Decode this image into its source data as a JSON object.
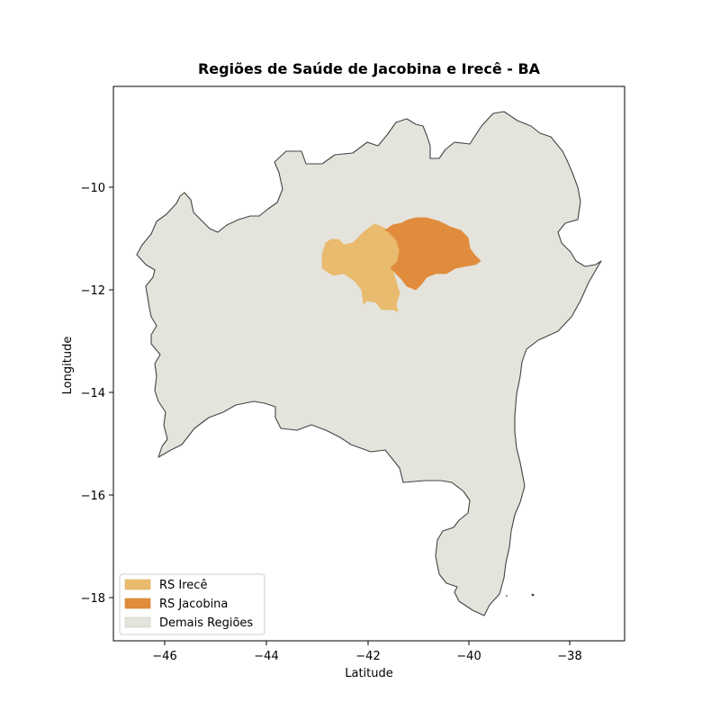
{
  "title": "Regiões de Saúde de Jacobina e Irecê - BA",
  "xlabel": "Latitude",
  "ylabel": "Longitude",
  "x_ticks": [
    {
      "value": -46,
      "label": "−46"
    },
    {
      "value": -44,
      "label": "−44"
    },
    {
      "value": -42,
      "label": "−42"
    },
    {
      "value": -40,
      "label": "−40"
    },
    {
      "value": -38,
      "label": "−38"
    }
  ],
  "y_ticks": [
    {
      "value": -10,
      "label": "−10"
    },
    {
      "value": -12,
      "label": "−12"
    },
    {
      "value": -14,
      "label": "−14"
    },
    {
      "value": -16,
      "label": "−16"
    },
    {
      "value": -18,
      "label": "−18"
    }
  ],
  "legend": {
    "items": [
      {
        "label": "RS Irecê",
        "color": "#e8bb6e"
      },
      {
        "label": "RS Jacobina",
        "color": "#e18c3c"
      },
      {
        "label": "Demais Regiões",
        "color": "#e4e3dc"
      }
    ]
  },
  "colors": {
    "irece": "#e8bb6e",
    "jacobina": "#e18c3c",
    "others": "#e4e3dc",
    "border": "#444444"
  }
}
